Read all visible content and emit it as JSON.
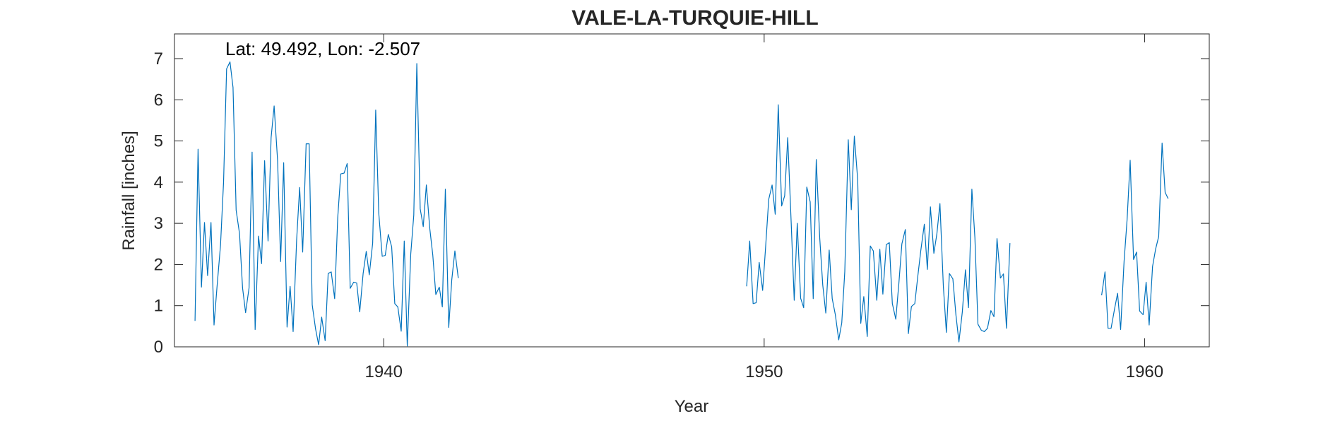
{
  "chart_data": {
    "type": "line",
    "title": "VALE-LA-TURQUIE-HILL",
    "annotation": "Lat: 49.492, Lon: -2.507",
    "xlabel": "Year",
    "ylabel": "Rainfall [inches]",
    "xlim": [
      1934.5,
      1961.7
    ],
    "ylim": [
      0,
      7.6
    ],
    "xticks": [
      1940,
      1950,
      1960
    ],
    "yticks": [
      0,
      1,
      2,
      3,
      4,
      5,
      6,
      7
    ],
    "grid": false,
    "line_color": "#0072BD",
    "series": [
      {
        "segments": [
          [
            [
              1935.04,
              0.63
            ],
            [
              1935.12,
              4.8
            ],
            [
              1935.21,
              1.45
            ],
            [
              1935.29,
              3.02
            ],
            [
              1935.37,
              1.73
            ],
            [
              1935.46,
              3.02
            ],
            [
              1935.54,
              0.53
            ],
            [
              1935.62,
              1.47
            ],
            [
              1935.71,
              2.47
            ],
            [
              1935.79,
              4.0
            ],
            [
              1935.87,
              6.75
            ],
            [
              1935.96,
              6.92
            ],
            [
              1936.04,
              6.3
            ],
            [
              1936.12,
              3.32
            ],
            [
              1936.21,
              2.75
            ],
            [
              1936.29,
              1.43
            ],
            [
              1936.37,
              0.83
            ],
            [
              1936.46,
              1.43
            ],
            [
              1936.54,
              4.73
            ],
            [
              1936.62,
              0.42
            ],
            [
              1936.71,
              2.69
            ],
            [
              1936.79,
              2.02
            ],
            [
              1936.87,
              4.52
            ],
            [
              1936.96,
              2.57
            ],
            [
              1937.04,
              5.08
            ],
            [
              1937.12,
              5.85
            ],
            [
              1937.21,
              4.52
            ],
            [
              1937.29,
              2.07
            ],
            [
              1937.37,
              4.47
            ],
            [
              1937.46,
              0.48
            ],
            [
              1937.54,
              1.47
            ],
            [
              1937.62,
              0.37
            ],
            [
              1937.71,
              2.58
            ],
            [
              1937.79,
              3.87
            ],
            [
              1937.87,
              2.3
            ],
            [
              1937.96,
              4.93
            ],
            [
              1938.04,
              4.93
            ],
            [
              1938.12,
              1.02
            ],
            [
              1938.21,
              0.43
            ],
            [
              1938.29,
              0.05
            ],
            [
              1938.37,
              0.72
            ],
            [
              1938.46,
              0.15
            ],
            [
              1938.54,
              1.78
            ],
            [
              1938.62,
              1.82
            ],
            [
              1938.71,
              1.17
            ],
            [
              1938.79,
              3.13
            ],
            [
              1938.87,
              4.2
            ],
            [
              1938.96,
              4.22
            ],
            [
              1939.04,
              4.45
            ],
            [
              1939.12,
              1.42
            ],
            [
              1939.21,
              1.57
            ],
            [
              1939.29,
              1.55
            ],
            [
              1939.37,
              0.85
            ],
            [
              1939.46,
              1.78
            ],
            [
              1939.54,
              2.32
            ],
            [
              1939.62,
              1.75
            ],
            [
              1939.71,
              2.52
            ],
            [
              1939.79,
              5.75
            ],
            [
              1939.87,
              3.25
            ],
            [
              1939.96,
              2.2
            ],
            [
              1940.04,
              2.22
            ],
            [
              1940.12,
              2.73
            ],
            [
              1940.21,
              2.43
            ],
            [
              1940.29,
              1.05
            ],
            [
              1940.37,
              0.97
            ],
            [
              1940.46,
              0.38
            ],
            [
              1940.54,
              2.57
            ],
            [
              1940.62,
              0.02
            ],
            [
              1940.71,
              2.25
            ],
            [
              1940.79,
              3.2
            ],
            [
              1940.87,
              6.88
            ],
            [
              1940.96,
              3.35
            ],
            [
              1941.04,
              2.92
            ],
            [
              1941.12,
              3.93
            ],
            [
              1941.21,
              2.88
            ],
            [
              1941.29,
              2.23
            ],
            [
              1941.37,
              1.27
            ],
            [
              1941.46,
              1.45
            ],
            [
              1941.54,
              0.97
            ],
            [
              1941.62,
              3.83
            ],
            [
              1941.71,
              0.47
            ],
            [
              1941.79,
              1.63
            ],
            [
              1941.87,
              2.33
            ],
            [
              1941.96,
              1.67
            ]
          ],
          [
            [
              1949.54,
              1.47
            ],
            [
              1949.62,
              2.57
            ],
            [
              1949.71,
              1.05
            ],
            [
              1949.79,
              1.07
            ],
            [
              1949.87,
              2.05
            ],
            [
              1949.96,
              1.37
            ],
            [
              1950.04,
              2.45
            ],
            [
              1950.12,
              3.58
            ],
            [
              1950.21,
              3.93
            ],
            [
              1950.29,
              3.22
            ],
            [
              1950.37,
              5.88
            ],
            [
              1950.46,
              3.42
            ],
            [
              1950.54,
              3.67
            ],
            [
              1950.62,
              5.08
            ],
            [
              1950.71,
              3.02
            ],
            [
              1950.79,
              1.13
            ],
            [
              1950.87,
              3.0
            ],
            [
              1950.96,
              1.18
            ],
            [
              1951.04,
              0.95
            ],
            [
              1951.12,
              3.88
            ],
            [
              1951.21,
              3.52
            ],
            [
              1951.29,
              1.17
            ],
            [
              1951.37,
              4.55
            ],
            [
              1951.46,
              2.65
            ],
            [
              1951.54,
              1.5
            ],
            [
              1951.62,
              0.82
            ],
            [
              1951.71,
              2.35
            ],
            [
              1951.79,
              1.17
            ],
            [
              1951.87,
              0.78
            ],
            [
              1951.96,
              0.17
            ],
            [
              1952.04,
              0.58
            ],
            [
              1952.12,
              1.83
            ],
            [
              1952.21,
              5.03
            ],
            [
              1952.29,
              3.33
            ],
            [
              1952.37,
              5.12
            ],
            [
              1952.46,
              4.05
            ],
            [
              1952.54,
              0.57
            ],
            [
              1952.62,
              1.22
            ],
            [
              1952.71,
              0.25
            ],
            [
              1952.79,
              2.45
            ],
            [
              1952.87,
              2.33
            ],
            [
              1952.96,
              1.13
            ],
            [
              1953.04,
              2.37
            ],
            [
              1953.12,
              1.28
            ],
            [
              1953.21,
              2.48
            ],
            [
              1953.29,
              2.53
            ],
            [
              1953.37,
              1.05
            ],
            [
              1953.46,
              0.67
            ],
            [
              1953.54,
              1.53
            ],
            [
              1953.62,
              2.5
            ],
            [
              1953.71,
              2.85
            ],
            [
              1953.79,
              0.32
            ],
            [
              1953.87,
              0.98
            ],
            [
              1953.96,
              1.05
            ],
            [
              1954.04,
              1.72
            ],
            [
              1954.12,
              2.35
            ],
            [
              1954.21,
              2.98
            ],
            [
              1954.29,
              1.88
            ],
            [
              1954.37,
              3.4
            ],
            [
              1954.46,
              2.27
            ],
            [
              1954.54,
              2.75
            ],
            [
              1954.62,
              3.48
            ],
            [
              1954.71,
              1.48
            ],
            [
              1954.79,
              0.35
            ],
            [
              1954.87,
              1.78
            ],
            [
              1954.96,
              1.65
            ],
            [
              1955.04,
              0.78
            ],
            [
              1955.12,
              0.12
            ],
            [
              1955.21,
              0.85
            ],
            [
              1955.29,
              1.87
            ],
            [
              1955.37,
              0.95
            ],
            [
              1955.46,
              3.83
            ],
            [
              1955.54,
              2.65
            ],
            [
              1955.62,
              0.55
            ],
            [
              1955.71,
              0.4
            ],
            [
              1955.79,
              0.37
            ],
            [
              1955.87,
              0.45
            ],
            [
              1955.96,
              0.88
            ],
            [
              1956.04,
              0.73
            ],
            [
              1956.12,
              2.63
            ],
            [
              1956.21,
              1.67
            ],
            [
              1956.29,
              1.77
            ],
            [
              1956.37,
              0.45
            ],
            [
              1956.46,
              2.52
            ]
          ],
          [
            [
              1958.87,
              1.25
            ],
            [
              1958.96,
              1.82
            ],
            [
              1959.04,
              0.45
            ],
            [
              1959.12,
              0.45
            ],
            [
              1959.21,
              0.92
            ],
            [
              1959.29,
              1.3
            ],
            [
              1959.37,
              0.42
            ],
            [
              1959.46,
              2.08
            ],
            [
              1959.54,
              3.1
            ],
            [
              1959.62,
              4.53
            ],
            [
              1959.71,
              2.12
            ],
            [
              1959.79,
              2.3
            ],
            [
              1959.87,
              0.87
            ],
            [
              1959.96,
              0.78
            ],
            [
              1960.04,
              1.57
            ],
            [
              1960.12,
              0.53
            ],
            [
              1960.21,
              1.95
            ],
            [
              1960.29,
              2.38
            ],
            [
              1960.37,
              2.68
            ],
            [
              1960.46,
              4.95
            ],
            [
              1960.54,
              3.75
            ],
            [
              1960.62,
              3.6
            ]
          ]
        ]
      }
    ]
  }
}
